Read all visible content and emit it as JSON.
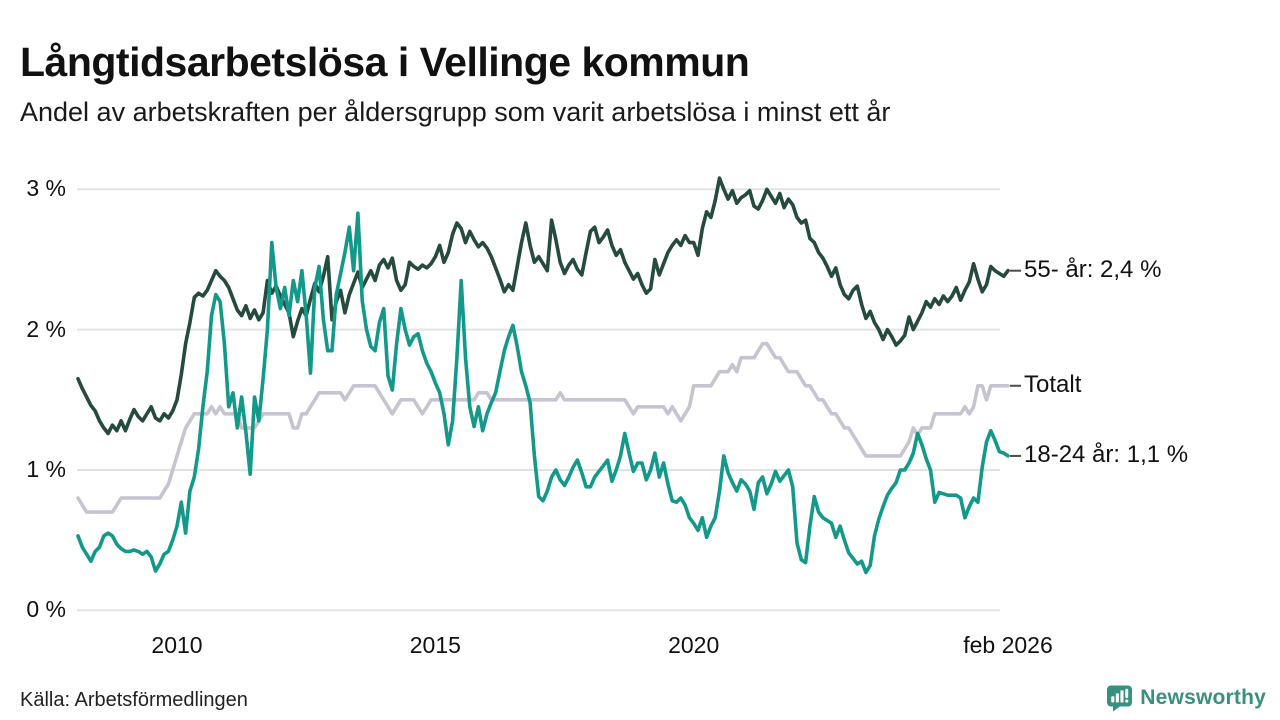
{
  "header": {
    "title": "Långtidsarbetslösa i Vellinge kommun",
    "subtitle": "Andel av arbetskraften per åldersgrupp som varit arbetslösa i minst ett år"
  },
  "source": "Källa: Arbetsförmedlingen",
  "branding": {
    "name": "Newsworthy",
    "color": "#38917f"
  },
  "colors": {
    "grid": "#e3e3e3",
    "tick_dash": "#4d4d4d",
    "text": "#111111"
  },
  "chart_data": {
    "type": "line",
    "title": "Långtidsarbetslösa i Vellinge kommun",
    "x_start": "2008-02",
    "x_end": "2026-02",
    "frequency": "monthly",
    "ylim": [
      0,
      3.1
    ],
    "grid": "horizontal",
    "legend_position": "right-end-labels",
    "y_ticks": [
      {
        "label": "3 %",
        "value": 3
      },
      {
        "label": "2 %",
        "value": 2
      },
      {
        "label": "1 %",
        "value": 1
      },
      {
        "label": "0 %",
        "value": 0
      }
    ],
    "x_ticks": [
      {
        "label": "2010",
        "index": 23
      },
      {
        "label": "2015",
        "index": 83
      },
      {
        "label": "2020",
        "index": 143
      },
      {
        "label": "feb 2026",
        "index": 216
      }
    ],
    "series": [
      {
        "name": "Totalt",
        "end_label": "Totalt",
        "end_value": 1.6,
        "color": "#c7c4d2",
        "values": [
          0.8,
          0.75,
          0.7,
          0.7,
          0.7,
          0.7,
          0.7,
          0.7,
          0.7,
          0.75,
          0.8,
          0.8,
          0.8,
          0.8,
          0.8,
          0.8,
          0.8,
          0.8,
          0.8,
          0.8,
          0.85,
          0.9,
          1.0,
          1.1,
          1.2,
          1.3,
          1.35,
          1.4,
          1.4,
          1.4,
          1.4,
          1.45,
          1.4,
          1.45,
          1.4,
          1.4,
          1.4,
          1.4,
          1.3,
          1.3,
          1.3,
          1.3,
          1.35,
          1.4,
          1.4,
          1.4,
          1.4,
          1.4,
          1.4,
          1.4,
          1.3,
          1.3,
          1.4,
          1.4,
          1.45,
          1.5,
          1.55,
          1.55,
          1.55,
          1.55,
          1.55,
          1.55,
          1.5,
          1.55,
          1.6,
          1.6,
          1.6,
          1.6,
          1.6,
          1.6,
          1.55,
          1.5,
          1.45,
          1.4,
          1.45,
          1.5,
          1.5,
          1.5,
          1.5,
          1.45,
          1.4,
          1.45,
          1.5,
          1.5,
          1.5,
          1.5,
          1.5,
          1.5,
          1.5,
          1.5,
          1.5,
          1.5,
          1.5,
          1.55,
          1.55,
          1.55,
          1.5,
          1.5,
          1.5,
          1.5,
          1.5,
          1.5,
          1.5,
          1.5,
          1.5,
          1.5,
          1.5,
          1.5,
          1.5,
          1.5,
          1.5,
          1.5,
          1.55,
          1.5,
          1.5,
          1.5,
          1.5,
          1.5,
          1.5,
          1.5,
          1.5,
          1.5,
          1.5,
          1.5,
          1.5,
          1.5,
          1.5,
          1.5,
          1.45,
          1.4,
          1.45,
          1.45,
          1.45,
          1.45,
          1.45,
          1.45,
          1.45,
          1.4,
          1.45,
          1.4,
          1.35,
          1.4,
          1.45,
          1.6,
          1.6,
          1.6,
          1.6,
          1.6,
          1.65,
          1.7,
          1.7,
          1.7,
          1.75,
          1.7,
          1.8,
          1.8,
          1.8,
          1.8,
          1.85,
          1.9,
          1.9,
          1.85,
          1.8,
          1.8,
          1.75,
          1.7,
          1.7,
          1.7,
          1.65,
          1.6,
          1.6,
          1.55,
          1.5,
          1.5,
          1.45,
          1.4,
          1.4,
          1.35,
          1.3,
          1.3,
          1.25,
          1.2,
          1.15,
          1.1,
          1.1,
          1.1,
          1.1,
          1.1,
          1.1,
          1.1,
          1.1,
          1.1,
          1.15,
          1.2,
          1.3,
          1.25,
          1.3,
          1.3,
          1.3,
          1.4,
          1.4,
          1.4,
          1.4,
          1.4,
          1.4,
          1.4,
          1.45,
          1.4,
          1.45,
          1.6,
          1.6,
          1.5,
          1.6,
          1.6,
          1.6,
          1.6,
          1.6
        ]
      },
      {
        "name": "55- år",
        "end_label": "55- år: 2,4 %",
        "end_value": 2.4,
        "color": "#254a3e",
        "values": [
          1.65,
          1.58,
          1.52,
          1.46,
          1.42,
          1.35,
          1.3,
          1.26,
          1.32,
          1.28,
          1.35,
          1.28,
          1.36,
          1.43,
          1.38,
          1.35,
          1.4,
          1.45,
          1.37,
          1.35,
          1.4,
          1.37,
          1.42,
          1.5,
          1.68,
          1.9,
          2.05,
          2.23,
          2.26,
          2.24,
          2.28,
          2.35,
          2.42,
          2.38,
          2.35,
          2.3,
          2.22,
          2.14,
          2.1,
          2.17,
          2.08,
          2.14,
          2.07,
          2.12,
          2.35,
          2.26,
          2.31,
          2.24,
          2.18,
          2.12,
          1.95,
          2.06,
          2.15,
          2.1,
          2.22,
          2.33,
          2.27,
          2.38,
          2.52,
          2.07,
          2.2,
          2.28,
          2.12,
          2.25,
          2.33,
          2.41,
          2.3,
          2.36,
          2.42,
          2.35,
          2.46,
          2.5,
          2.44,
          2.51,
          2.35,
          2.28,
          2.32,
          2.48,
          2.45,
          2.43,
          2.46,
          2.44,
          2.47,
          2.52,
          2.6,
          2.48,
          2.55,
          2.68,
          2.76,
          2.72,
          2.62,
          2.7,
          2.64,
          2.59,
          2.62,
          2.58,
          2.52,
          2.44,
          2.36,
          2.27,
          2.32,
          2.28,
          2.45,
          2.62,
          2.76,
          2.6,
          2.48,
          2.52,
          2.47,
          2.42,
          2.78,
          2.64,
          2.48,
          2.4,
          2.46,
          2.5,
          2.43,
          2.39,
          2.55,
          2.7,
          2.73,
          2.62,
          2.66,
          2.71,
          2.6,
          2.53,
          2.57,
          2.48,
          2.42,
          2.36,
          2.4,
          2.32,
          2.26,
          2.29,
          2.5,
          2.39,
          2.47,
          2.55,
          2.6,
          2.64,
          2.6,
          2.67,
          2.62,
          2.62,
          2.53,
          2.72,
          2.84,
          2.8,
          2.92,
          3.08,
          3.0,
          2.93,
          2.99,
          2.9,
          2.94,
          2.96,
          2.99,
          2.88,
          2.86,
          2.92,
          3.0,
          2.95,
          2.9,
          2.97,
          2.87,
          2.93,
          2.89,
          2.8,
          2.76,
          2.78,
          2.65,
          2.62,
          2.55,
          2.51,
          2.45,
          2.38,
          2.44,
          2.32,
          2.25,
          2.22,
          2.28,
          2.31,
          2.18,
          2.08,
          2.13,
          2.05,
          2.0,
          1.93,
          2.0,
          1.95,
          1.89,
          1.92,
          1.96,
          2.09,
          2.0,
          2.06,
          2.12,
          2.2,
          2.16,
          2.22,
          2.18,
          2.24,
          2.2,
          2.24,
          2.3,
          2.21,
          2.28,
          2.34,
          2.47,
          2.36,
          2.27,
          2.32,
          2.45,
          2.42,
          2.4,
          2.38,
          2.42
        ]
      },
      {
        "name": "18-24 år",
        "end_label": "18-24 år: 1,1 %",
        "end_value": 1.1,
        "color": "#12998a",
        "values": [
          0.53,
          0.45,
          0.4,
          0.35,
          0.42,
          0.45,
          0.53,
          0.55,
          0.53,
          0.47,
          0.44,
          0.42,
          0.42,
          0.43,
          0.42,
          0.4,
          0.42,
          0.38,
          0.28,
          0.33,
          0.4,
          0.42,
          0.5,
          0.6,
          0.77,
          0.55,
          0.85,
          0.95,
          1.15,
          1.45,
          1.7,
          2.1,
          2.25,
          2.2,
          1.9,
          1.45,
          1.55,
          1.3,
          1.52,
          1.27,
          0.97,
          1.52,
          1.35,
          1.65,
          2.0,
          2.62,
          2.3,
          2.15,
          2.3,
          2.1,
          2.35,
          2.2,
          2.42,
          2.1,
          1.69,
          2.3,
          2.45,
          2.07,
          1.85,
          1.85,
          2.25,
          2.4,
          2.55,
          2.73,
          2.42,
          2.83,
          2.21,
          2.0,
          1.88,
          1.85,
          2.05,
          2.15,
          1.67,
          1.57,
          1.9,
          2.15,
          2.0,
          1.89,
          1.95,
          1.97,
          1.85,
          1.76,
          1.7,
          1.62,
          1.55,
          1.4,
          1.18,
          1.35,
          1.8,
          2.35,
          1.8,
          1.45,
          1.31,
          1.45,
          1.28,
          1.4,
          1.48,
          1.55,
          1.7,
          1.85,
          1.95,
          2.03,
          1.88,
          1.7,
          1.6,
          1.48,
          1.1,
          0.81,
          0.78,
          0.85,
          0.95,
          1.0,
          0.93,
          0.89,
          0.95,
          1.02,
          1.07,
          0.98,
          0.88,
          0.88,
          0.95,
          0.99,
          1.03,
          1.07,
          0.92,
          1.0,
          1.1,
          1.26,
          1.12,
          0.99,
          1.05,
          1.05,
          0.93,
          1.0,
          1.12,
          0.95,
          1.05,
          0.9,
          0.78,
          0.77,
          0.8,
          0.75,
          0.66,
          0.62,
          0.57,
          0.66,
          0.52,
          0.6,
          0.66,
          0.85,
          1.1,
          0.98,
          0.91,
          0.85,
          0.93,
          0.9,
          0.85,
          0.72,
          0.91,
          0.95,
          0.83,
          0.9,
          0.99,
          0.92,
          0.96,
          1.0,
          0.88,
          0.48,
          0.36,
          0.34,
          0.6,
          0.81,
          0.7,
          0.66,
          0.64,
          0.62,
          0.52,
          0.6,
          0.5,
          0.41,
          0.37,
          0.33,
          0.35,
          0.27,
          0.32,
          0.53,
          0.65,
          0.74,
          0.82,
          0.87,
          0.91,
          1.0,
          1.0,
          1.05,
          1.12,
          1.26,
          1.18,
          1.08,
          1.0,
          0.77,
          0.84,
          0.83,
          0.82,
          0.82,
          0.82,
          0.8,
          0.66,
          0.74,
          0.8,
          0.77,
          1.02,
          1.2,
          1.28,
          1.21,
          1.13,
          1.12,
          1.1
        ]
      }
    ]
  }
}
